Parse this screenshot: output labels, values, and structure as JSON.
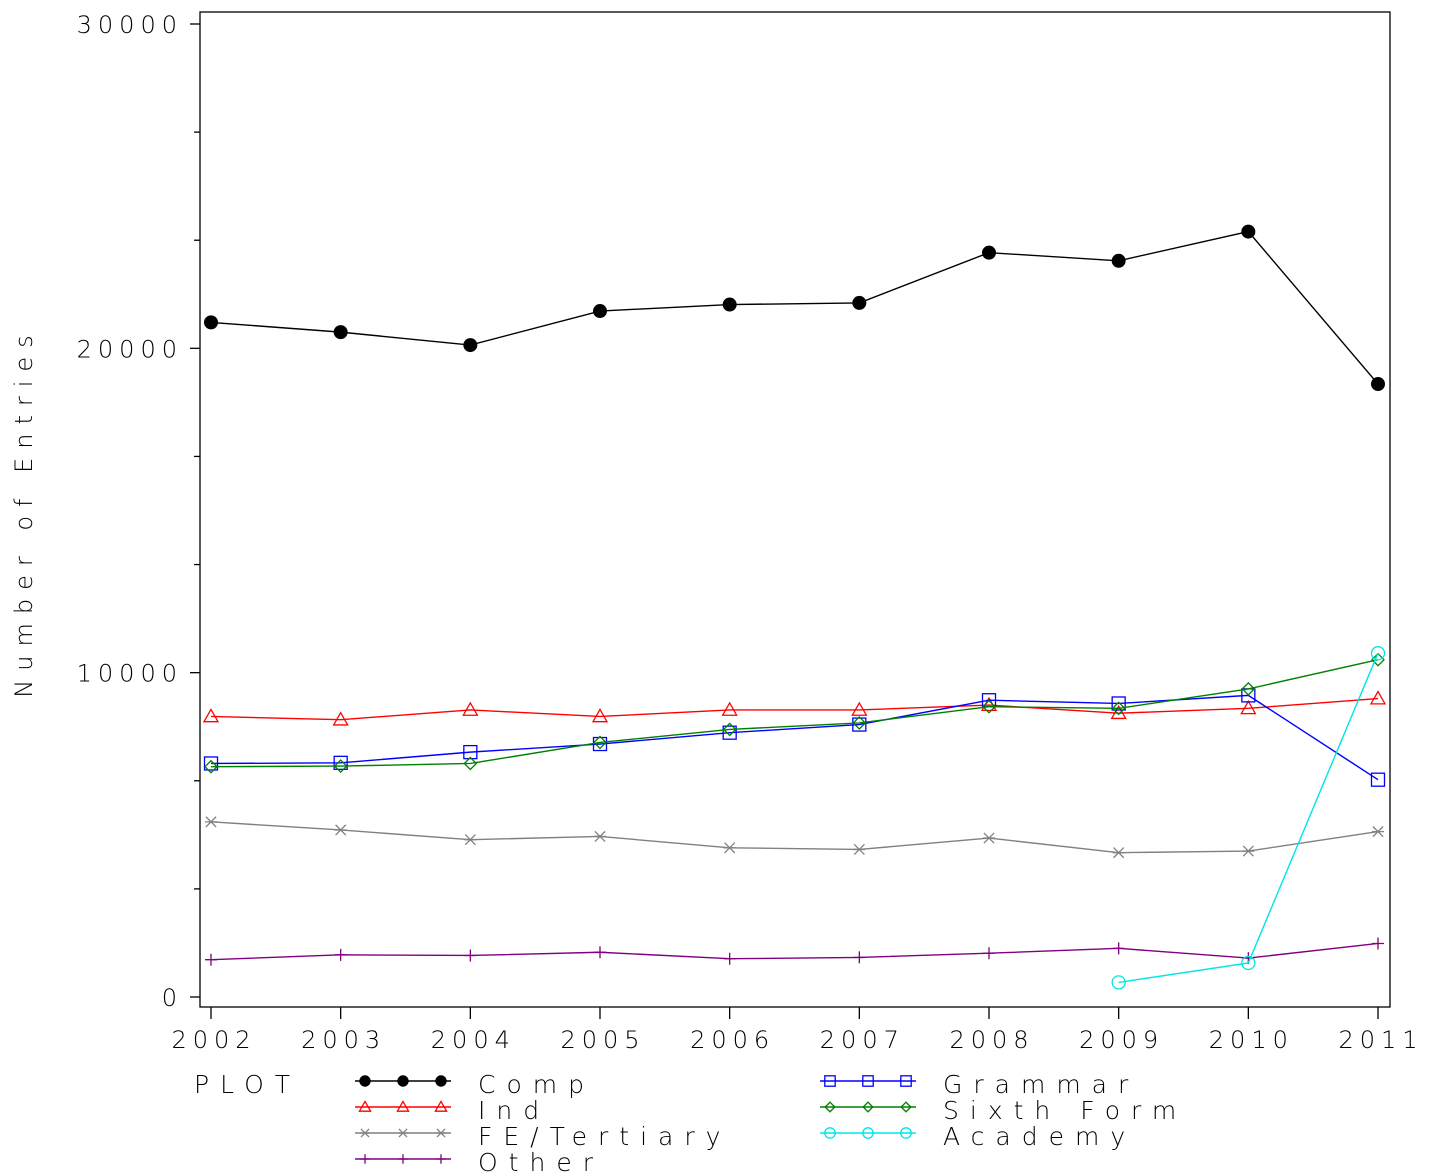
{
  "chart_data": {
    "type": "line",
    "title": "",
    "xlabel": "",
    "ylabel": "Number of Entries",
    "x": [
      2002,
      2003,
      2004,
      2005,
      2006,
      2007,
      2008,
      2009,
      2010,
      2011
    ],
    "xlim": [
      2002,
      2011
    ],
    "ylim": [
      0,
      30000
    ],
    "yticks": [
      0,
      10000,
      20000,
      30000
    ],
    "legend_title": "PLOT",
    "legend_position": "bottom",
    "grid": false,
    "series": [
      {
        "name": "Comp",
        "color": "#000000",
        "marker": "filled-circle",
        "values": [
          20800,
          20500,
          20100,
          21150,
          21350,
          21400,
          22950,
          22700,
          23600,
          18900
        ]
      },
      {
        "name": "Ind",
        "color": "#ff0000",
        "marker": "triangle",
        "values": [
          8650,
          8550,
          8850,
          8650,
          8850,
          8850,
          9000,
          8750,
          8900,
          9200
        ]
      },
      {
        "name": "FE/Tertiary",
        "color": "#808080",
        "marker": "asterisk",
        "values": [
          5400,
          5150,
          4850,
          4950,
          4600,
          4550,
          4900,
          4450,
          4500,
          5100
        ]
      },
      {
        "name": "Other",
        "color": "#800080",
        "marker": "plus",
        "values": [
          1150,
          1300,
          1280,
          1380,
          1180,
          1220,
          1350,
          1500,
          1200,
          1650
        ]
      },
      {
        "name": "Grammar",
        "color": "#0000ff",
        "marker": "square",
        "values": [
          7200,
          7220,
          7550,
          7800,
          8150,
          8400,
          9150,
          9050,
          9300,
          6700
        ]
      },
      {
        "name": "Sixth Form",
        "color": "#008000",
        "marker": "diamond",
        "values": [
          7100,
          7120,
          7200,
          7850,
          8250,
          8450,
          8950,
          8900,
          9500,
          10400
        ]
      },
      {
        "name": "Academy",
        "color": "#00e5e5",
        "marker": "circle",
        "values": [
          null,
          null,
          null,
          null,
          null,
          null,
          null,
          450,
          1050,
          10600
        ]
      }
    ]
  }
}
